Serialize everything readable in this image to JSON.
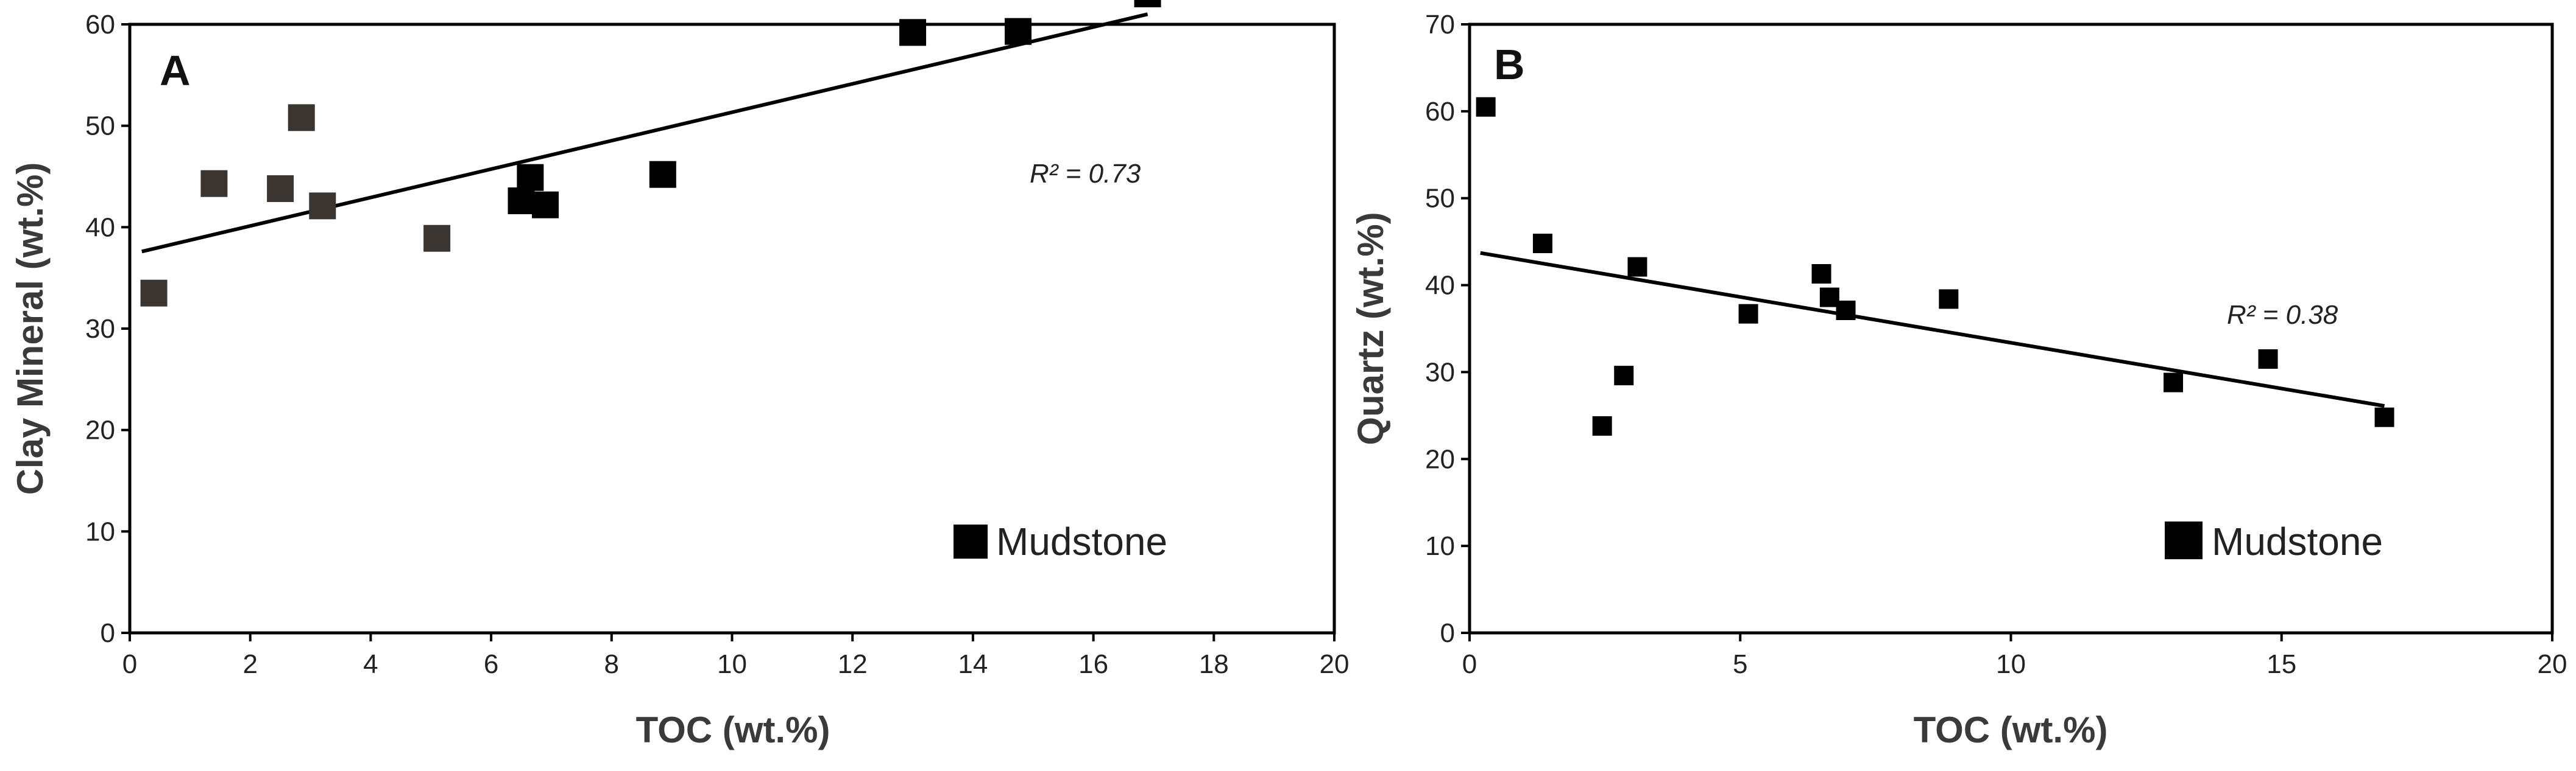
{
  "chart_data": [
    {
      "type": "scatter",
      "panel_label": "A",
      "xlabel": "TOC (wt.%)",
      "ylabel": "Clay Mineral (wt.%)",
      "xlim": [
        0,
        20
      ],
      "ylim": [
        0,
        60
      ],
      "x_ticks": [
        0,
        2,
        4,
        6,
        8,
        10,
        12,
        14,
        16,
        18,
        20
      ],
      "y_ticks": [
        0,
        10,
        20,
        30,
        40,
        50,
        60
      ],
      "series": [
        {
          "name": "Mudstone",
          "color": "#000000",
          "points": [
            {
              "x": 0.4,
              "y": 33.5,
              "color": "#3a3530"
            },
            {
              "x": 1.4,
              "y": 44.3,
              "color": "#3a3530"
            },
            {
              "x": 2.5,
              "y": 43.8,
              "color": "#3a3530"
            },
            {
              "x": 2.85,
              "y": 50.8,
              "color": "#3a3530"
            },
            {
              "x": 3.2,
              "y": 42.1,
              "color": "#3a3530"
            },
            {
              "x": 5.1,
              "y": 38.9,
              "color": "#3a3530"
            },
            {
              "x": 6.5,
              "y": 42.6,
              "color": "#000000"
            },
            {
              "x": 6.65,
              "y": 44.9,
              "color": "#000000"
            },
            {
              "x": 6.9,
              "y": 42.2,
              "color": "#000000"
            },
            {
              "x": 8.85,
              "y": 45.2,
              "color": "#000000"
            },
            {
              "x": 13.0,
              "y": 59.2,
              "color": "#000000"
            },
            {
              "x": 14.75,
              "y": 59.3,
              "color": "#000000"
            },
            {
              "x": 16.9,
              "y": 63.0,
              "color": "#000000"
            }
          ]
        }
      ],
      "trendline": {
        "x": [
          0.2,
          16.9
        ],
        "y": [
          37.6,
          61.0
        ]
      },
      "r2_text": "R² = 0.73",
      "legend": {
        "label": "Mudstone",
        "position": "bottom-right"
      }
    },
    {
      "type": "scatter",
      "panel_label": "B",
      "xlabel": "TOC (wt.%)",
      "ylabel": "Quartz (wt.%)",
      "xlim": [
        0,
        20
      ],
      "ylim": [
        0,
        70
      ],
      "x_ticks": [
        0,
        5,
        10,
        15,
        20
      ],
      "y_ticks": [
        0,
        10,
        20,
        30,
        40,
        50,
        60,
        70
      ],
      "series": [
        {
          "name": "Mudstone",
          "color": "#000000",
          "points": [
            {
              "x": 0.3,
              "y": 60.5,
              "color": "#000000"
            },
            {
              "x": 1.35,
              "y": 44.8,
              "color": "#000000"
            },
            {
              "x": 2.45,
              "y": 23.8,
              "color": "#000000"
            },
            {
              "x": 2.85,
              "y": 29.6,
              "color": "#000000"
            },
            {
              "x": 3.1,
              "y": 42.1,
              "color": "#000000"
            },
            {
              "x": 5.15,
              "y": 36.7,
              "color": "#000000"
            },
            {
              "x": 6.5,
              "y": 41.3,
              "color": "#000000"
            },
            {
              "x": 6.65,
              "y": 38.6,
              "color": "#000000"
            },
            {
              "x": 6.95,
              "y": 37.1,
              "color": "#000000"
            },
            {
              "x": 8.85,
              "y": 38.4,
              "color": "#000000"
            },
            {
              "x": 13.0,
              "y": 28.8,
              "color": "#000000"
            },
            {
              "x": 14.75,
              "y": 31.5,
              "color": "#000000"
            },
            {
              "x": 16.9,
              "y": 24.8,
              "color": "#000000"
            }
          ]
        }
      ],
      "trendline": {
        "x": [
          0.2,
          16.9
        ],
        "y": [
          43.7,
          26.1
        ]
      },
      "r2_text": "R² = 0.38",
      "legend": {
        "label": "Mudstone",
        "position": "bottom-right"
      }
    }
  ]
}
